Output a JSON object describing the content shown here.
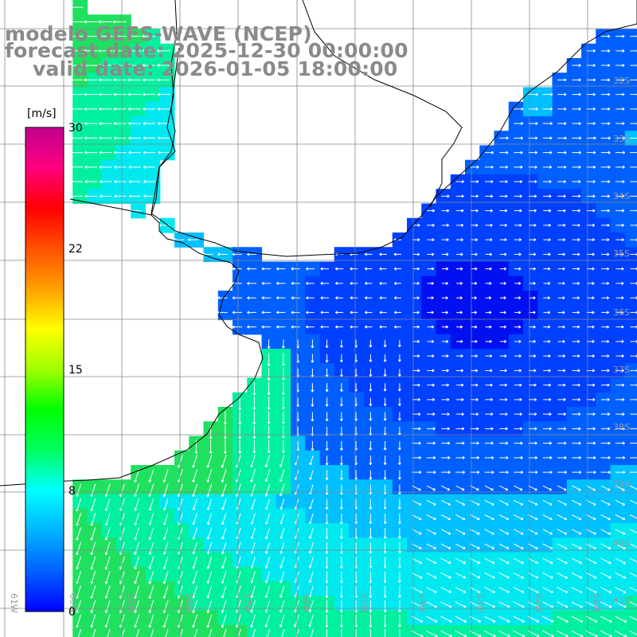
{
  "title": {
    "model": "modelo GEFS-WAVE (NCEP)",
    "forecast": "forecast date: 2025-12-30 00:00:00",
    "valid": "valid date: 2026-01-05 18:00:00"
  },
  "colorbar": {
    "unit": "[m/s]",
    "ticks": [
      "30",
      "22",
      "15",
      "8",
      "0"
    ],
    "tick_values": [
      30,
      22,
      15,
      8,
      0
    ],
    "range": [
      0,
      30
    ],
    "colors": [
      "#0000ff",
      "#0060ff",
      "#00b4ff",
      "#00ffff",
      "#00ff60",
      "#00ff00",
      "#a0ff00",
      "#ffff00",
      "#ffa000",
      "#ff5000",
      "#ff0000",
      "#ff0080",
      "#c00090"
    ]
  },
  "axes": {
    "lat_labels": [
      "32S",
      "33S",
      "34S",
      "35S",
      "36S",
      "37S",
      "38S",
      "39S",
      "40S",
      "41S"
    ],
    "lon_labels": [
      "61W",
      "60W",
      "59W",
      "58W",
      "57W",
      "56W",
      "55W",
      "54W",
      "53W",
      "52W",
      "51W"
    ]
  },
  "map_colors": {
    "water_deep": "#0010f0",
    "water_mid": "#0060ff",
    "water_light": "#00c0ff",
    "water_cyan": "#00e8f0",
    "water_green": "#20e060",
    "land": "#ffffff",
    "coast": "#000000",
    "grid": "#888888",
    "arrow": "#ffffff"
  }
}
